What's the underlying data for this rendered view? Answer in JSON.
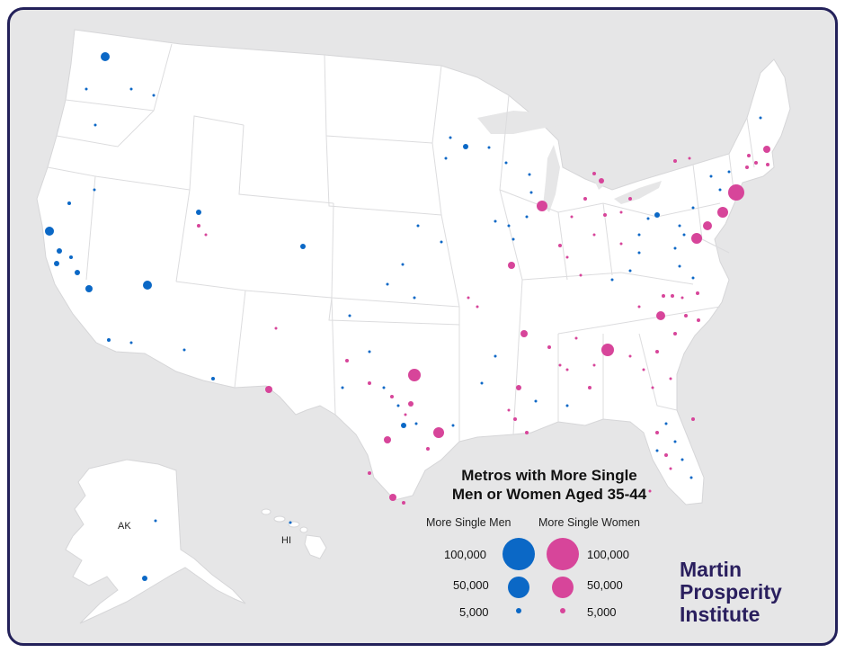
{
  "map": {
    "title_line1": "Metros with More Single",
    "title_line2": "Men or Women Aged 35-44",
    "labels": {
      "alaska": "AK",
      "hawaii": "HI"
    }
  },
  "legend": {
    "men_heading": "More Single Men",
    "women_heading": "More Single Women",
    "sizes": [
      {
        "label": "100,000"
      },
      {
        "label": "50,000"
      },
      {
        "label": "5,000"
      }
    ]
  },
  "brand": {
    "line1": "Martin",
    "line2": "Prosperity",
    "line3": "Institute"
  },
  "colors": {
    "men": "#0b68c6",
    "women": "#d7459a",
    "land": "#ffffff",
    "border": "#d6d6d8",
    "water": "#e6e6e7"
  }
}
